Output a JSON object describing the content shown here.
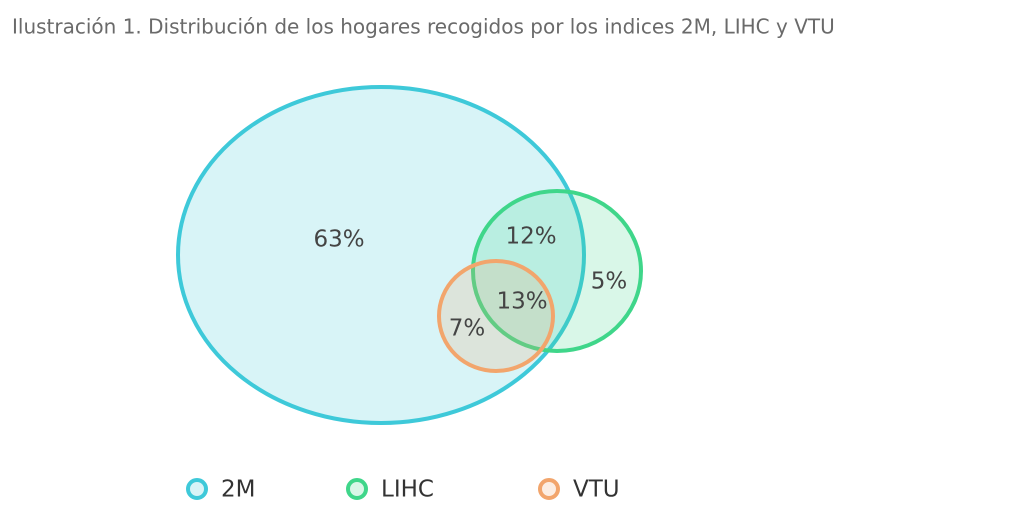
{
  "chart_data": {
    "type": "venn",
    "title": "Ilustración 1. Distribución de los hogares recogidos por los indices 2M, LIHC y VTU",
    "series": [
      {
        "name": "2M",
        "color": "#3ec9d9"
      },
      {
        "name": "LIHC",
        "color": "#3fd68a"
      },
      {
        "name": "VTU",
        "color": "#f2a56c"
      }
    ],
    "values": [
      63,
      12,
      5,
      13,
      7
    ],
    "value_labels": [
      "63%",
      "12%",
      "5%",
      "13%",
      "7%"
    ]
  }
}
